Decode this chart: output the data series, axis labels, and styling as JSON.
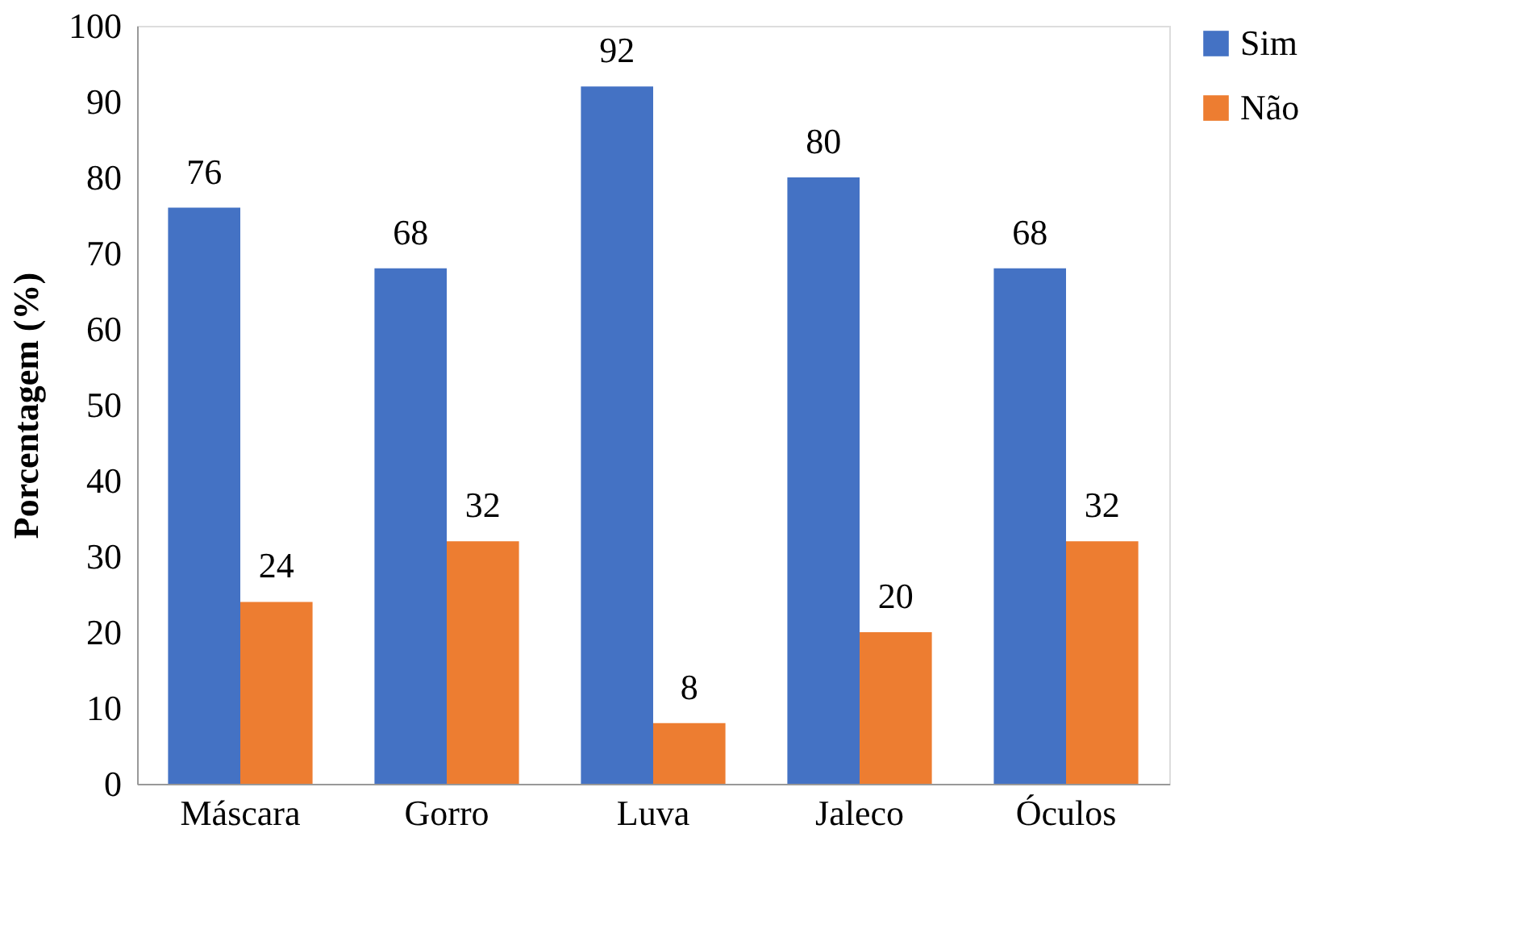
{
  "chart_data": {
    "type": "bar",
    "ylabel": "Porcentagem (%)",
    "categories": [
      "Máscara",
      "Gorro",
      "Luva",
      "Jaleco",
      "Óculos"
    ],
    "series": [
      {
        "name": "Sim",
        "color": "#4472c4",
        "values": [
          76,
          68,
          92,
          80,
          68
        ]
      },
      {
        "name": "Não",
        "color": "#ed7d31",
        "values": [
          24,
          32,
          8,
          20,
          32
        ]
      }
    ],
    "ylim": [
      0,
      100
    ],
    "yticks": [
      0,
      10,
      20,
      30,
      40,
      50,
      60,
      70,
      80,
      90,
      100
    ],
    "grid": false,
    "legend": "right",
    "data_labels": true
  }
}
